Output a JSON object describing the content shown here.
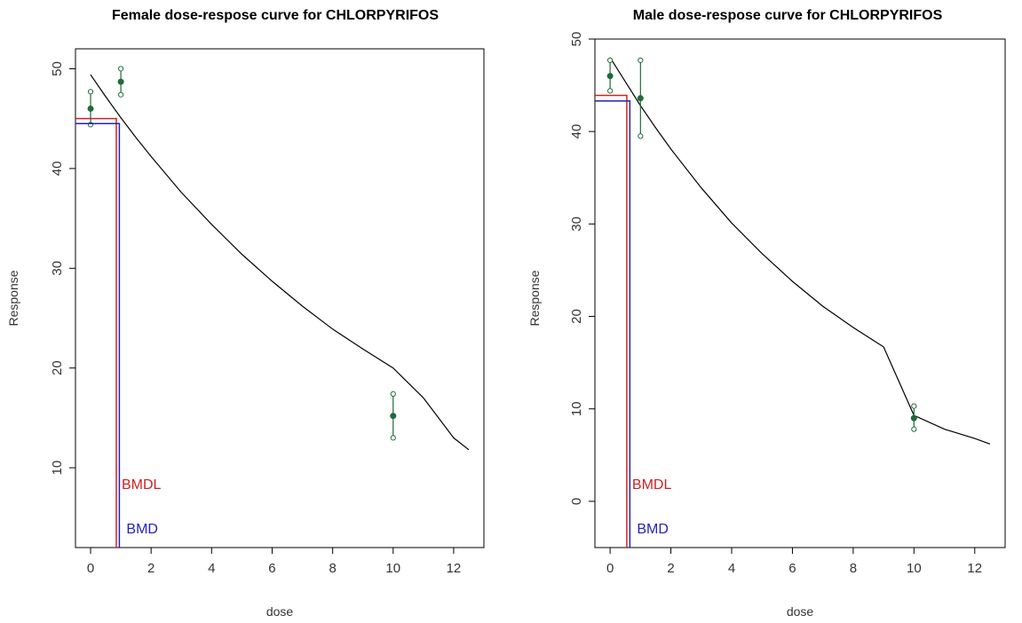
{
  "chart_data": [
    {
      "type": "line",
      "title": "Female dose-respose curve for CHLORPYRIFOS",
      "xlabel": "dose",
      "ylabel": "Response",
      "xlim": [
        -0.5,
        13
      ],
      "ylim": [
        2,
        52
      ],
      "xticks": [
        0,
        2,
        4,
        6,
        8,
        10,
        12
      ],
      "yticks": [
        10,
        20,
        30,
        40,
        50
      ],
      "grid": false,
      "series": [
        {
          "kind": "fitted-curve",
          "color": "#000000",
          "x": [
            0,
            0.5,
            1,
            1.5,
            2,
            3,
            4,
            5,
            6,
            7,
            8,
            9,
            10,
            11,
            12,
            12.5
          ],
          "y": [
            49.4,
            47.2,
            45.1,
            43.1,
            41.2,
            37.6,
            34.4,
            31.4,
            28.7,
            26.2,
            23.9,
            21.9,
            20.0,
            17.0,
            13.0,
            11.8
          ]
        },
        {
          "kind": "observed-mean-with-ci",
          "color": "#1f6b3a",
          "points": [
            {
              "x": 0,
              "y": 46.0,
              "lower": 44.4,
              "upper": 47.7
            },
            {
              "x": 1,
              "y": 48.7,
              "lower": 47.4,
              "upper": 50.0
            },
            {
              "x": 10,
              "y": 15.2,
              "lower": 13.0,
              "upper": 17.4
            }
          ]
        }
      ],
      "bmdl": {
        "label": "BMDL",
        "dose": 0.85,
        "response": 45.0,
        "color": "#cc2222"
      },
      "bmd": {
        "label": "BMD",
        "dose": 0.95,
        "response": 44.5,
        "color": "#2222bb"
      }
    },
    {
      "type": "line",
      "title": "Male dose-respose curve for CHLORPYRIFOS",
      "xlabel": "dose",
      "ylabel": "Response",
      "xlim": [
        -0.5,
        13
      ],
      "ylim": [
        -5,
        50
      ],
      "xticks": [
        0,
        2,
        4,
        6,
        8,
        10,
        12
      ],
      "yticks": [
        0,
        10,
        20,
        30,
        40,
        50
      ],
      "grid": false,
      "series": [
        {
          "kind": "fitted-curve",
          "color": "#000000",
          "x": [
            0,
            0.5,
            1,
            1.5,
            2,
            3,
            4,
            5,
            6,
            7,
            8,
            9,
            10,
            11,
            12,
            12.5
          ],
          "y": [
            48.0,
            45.4,
            42.8,
            40.4,
            38.1,
            33.9,
            30.1,
            26.8,
            23.8,
            21.1,
            18.8,
            16.7,
            9.3,
            7.8,
            6.8,
            6.2
          ]
        },
        {
          "kind": "observed-mean-with-ci",
          "color": "#1f6b3a",
          "points": [
            {
              "x": 0,
              "y": 46.0,
              "lower": 44.4,
              "upper": 47.7
            },
            {
              "x": 1,
              "y": 43.6,
              "lower": 39.5,
              "upper": 47.7
            },
            {
              "x": 10,
              "y": 9.0,
              "lower": 7.8,
              "upper": 10.3
            }
          ]
        }
      ],
      "bmdl": {
        "label": "BMDL",
        "dose": 0.55,
        "response": 43.9,
        "color": "#cc2222"
      },
      "bmd": {
        "label": "BMD",
        "dose": 0.65,
        "response": 43.3,
        "color": "#2222bb"
      }
    }
  ]
}
